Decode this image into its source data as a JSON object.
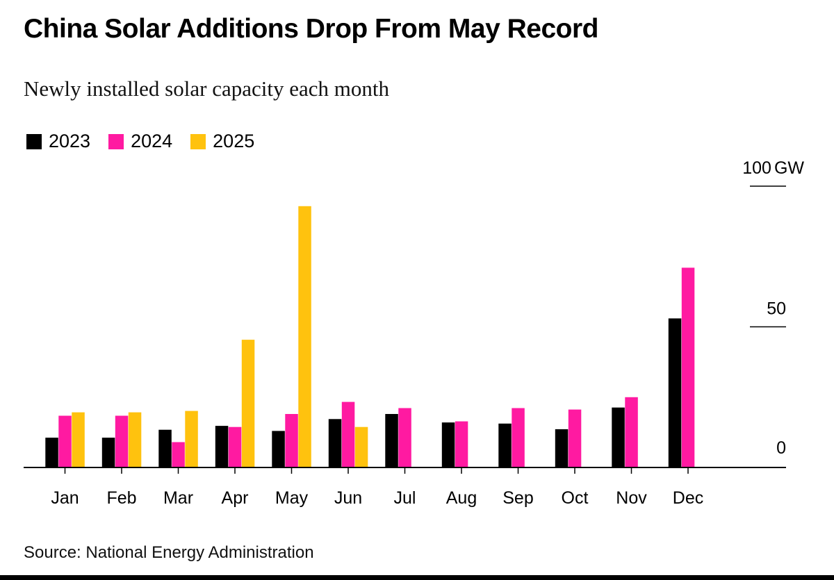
{
  "chart_data": {
    "type": "bar",
    "title": "China Solar Additions Drop From May Record",
    "subtitle": "Newly installed solar capacity each month",
    "source": "Source: National Energy Administration",
    "categories": [
      "Jan",
      "Feb",
      "Mar",
      "Apr",
      "May",
      "Jun",
      "Jul",
      "Aug",
      "Sep",
      "Oct",
      "Nov",
      "Dec"
    ],
    "series": [
      {
        "name": "2023",
        "color": "#000000",
        "values": [
          10.6,
          10.6,
          13.4,
          14.8,
          13.0,
          17.2,
          19.0,
          16.0,
          15.6,
          13.6,
          21.3,
          53.0
        ]
      },
      {
        "name": "2024",
        "color": "#ff1aa1",
        "values": [
          18.4,
          18.4,
          9.0,
          14.4,
          19.0,
          23.3,
          21.1,
          16.4,
          21.1,
          20.6,
          25.0,
          71.0
        ]
      },
      {
        "name": "2025",
        "color": "#ffc20e",
        "values": [
          19.6,
          19.6,
          20.1,
          45.4,
          92.9,
          14.4,
          null,
          null,
          null,
          null,
          null,
          null
        ]
      }
    ],
    "yaxis": {
      "ticks": [
        {
          "value": 0,
          "label": "0"
        },
        {
          "value": 50,
          "label": "50"
        },
        {
          "value": 100,
          "label": "100",
          "unit": "GW"
        }
      ],
      "ylim": [
        0,
        100
      ],
      "position": "right"
    },
    "xlabel": "",
    "ylabel": "",
    "grid": false,
    "legend_position": "top-left"
  }
}
